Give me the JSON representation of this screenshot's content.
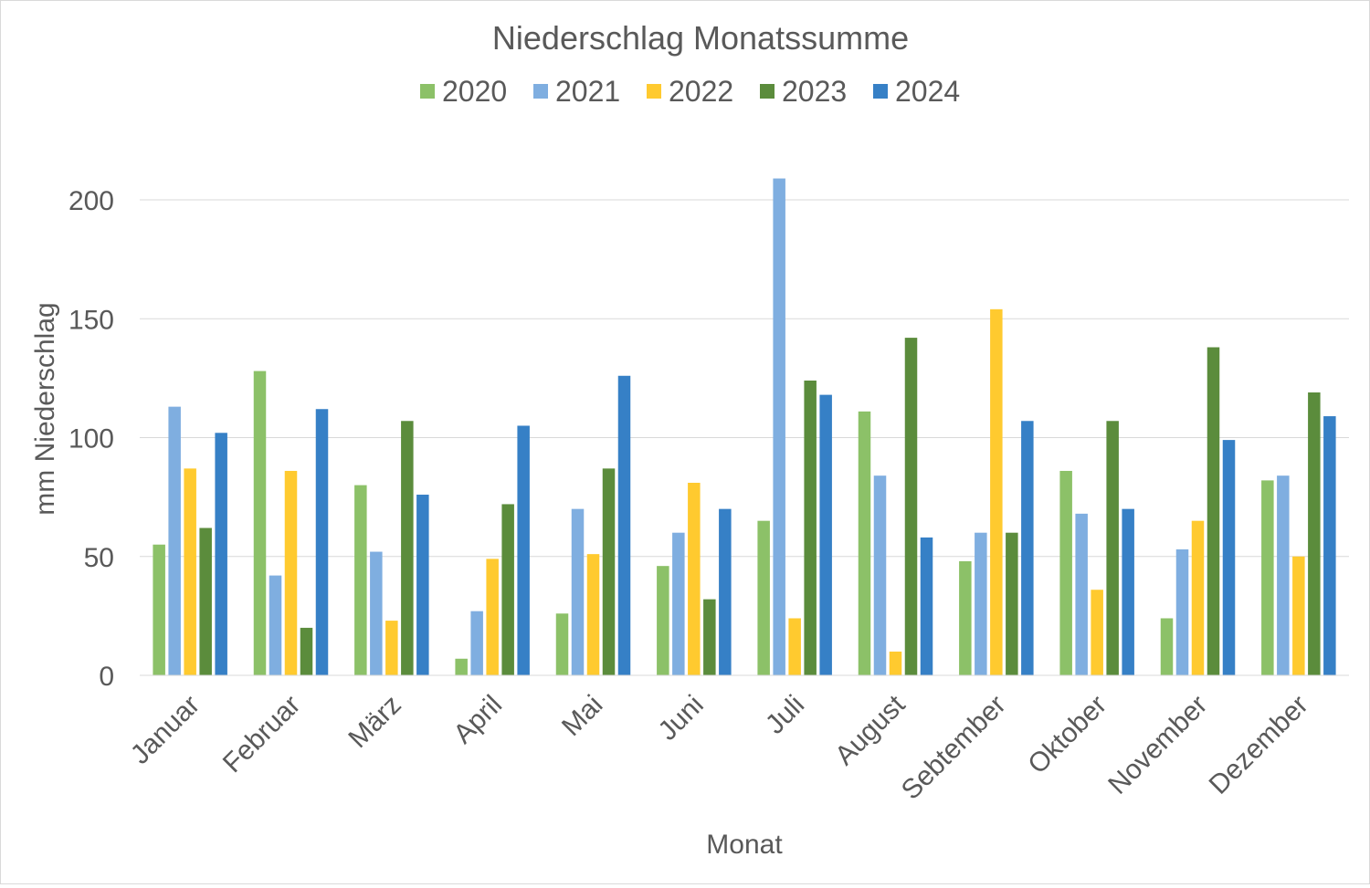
{
  "chart_data": {
    "type": "bar",
    "title": "Niederschlag Monatssumme",
    "xlabel": "Monat",
    "ylabel": "mm Niederschlag",
    "ylim": [
      0,
      200
    ],
    "yticks": [
      0,
      50,
      100,
      150,
      200
    ],
    "grid": true,
    "legend_position": "top",
    "categories": [
      "Januar",
      "Februar",
      "März",
      "April",
      "Mai",
      "Juni",
      "Juli",
      "August",
      "Sebtember",
      "Oktober",
      "November",
      "Dezember"
    ],
    "series": [
      {
        "name": "2020",
        "color": "#8cc168",
        "values": [
          55,
          128,
          80,
          7,
          26,
          46,
          65,
          111,
          48,
          86,
          24,
          82
        ]
      },
      {
        "name": "2021",
        "color": "#7faee0",
        "values": [
          113,
          42,
          52,
          27,
          70,
          60,
          209,
          84,
          60,
          68,
          53,
          84
        ]
      },
      {
        "name": "2022",
        "color": "#ffca2f",
        "values": [
          87,
          86,
          23,
          49,
          51,
          81,
          24,
          10,
          154,
          36,
          65,
          50
        ]
      },
      {
        "name": "2023",
        "color": "#5b8c3c",
        "values": [
          62,
          20,
          107,
          72,
          87,
          32,
          124,
          142,
          60,
          107,
          138,
          119
        ]
      },
      {
        "name": "2024",
        "color": "#3680c6",
        "values": [
          102,
          112,
          76,
          105,
          126,
          70,
          118,
          58,
          107,
          70,
          99,
          109
        ]
      }
    ]
  }
}
